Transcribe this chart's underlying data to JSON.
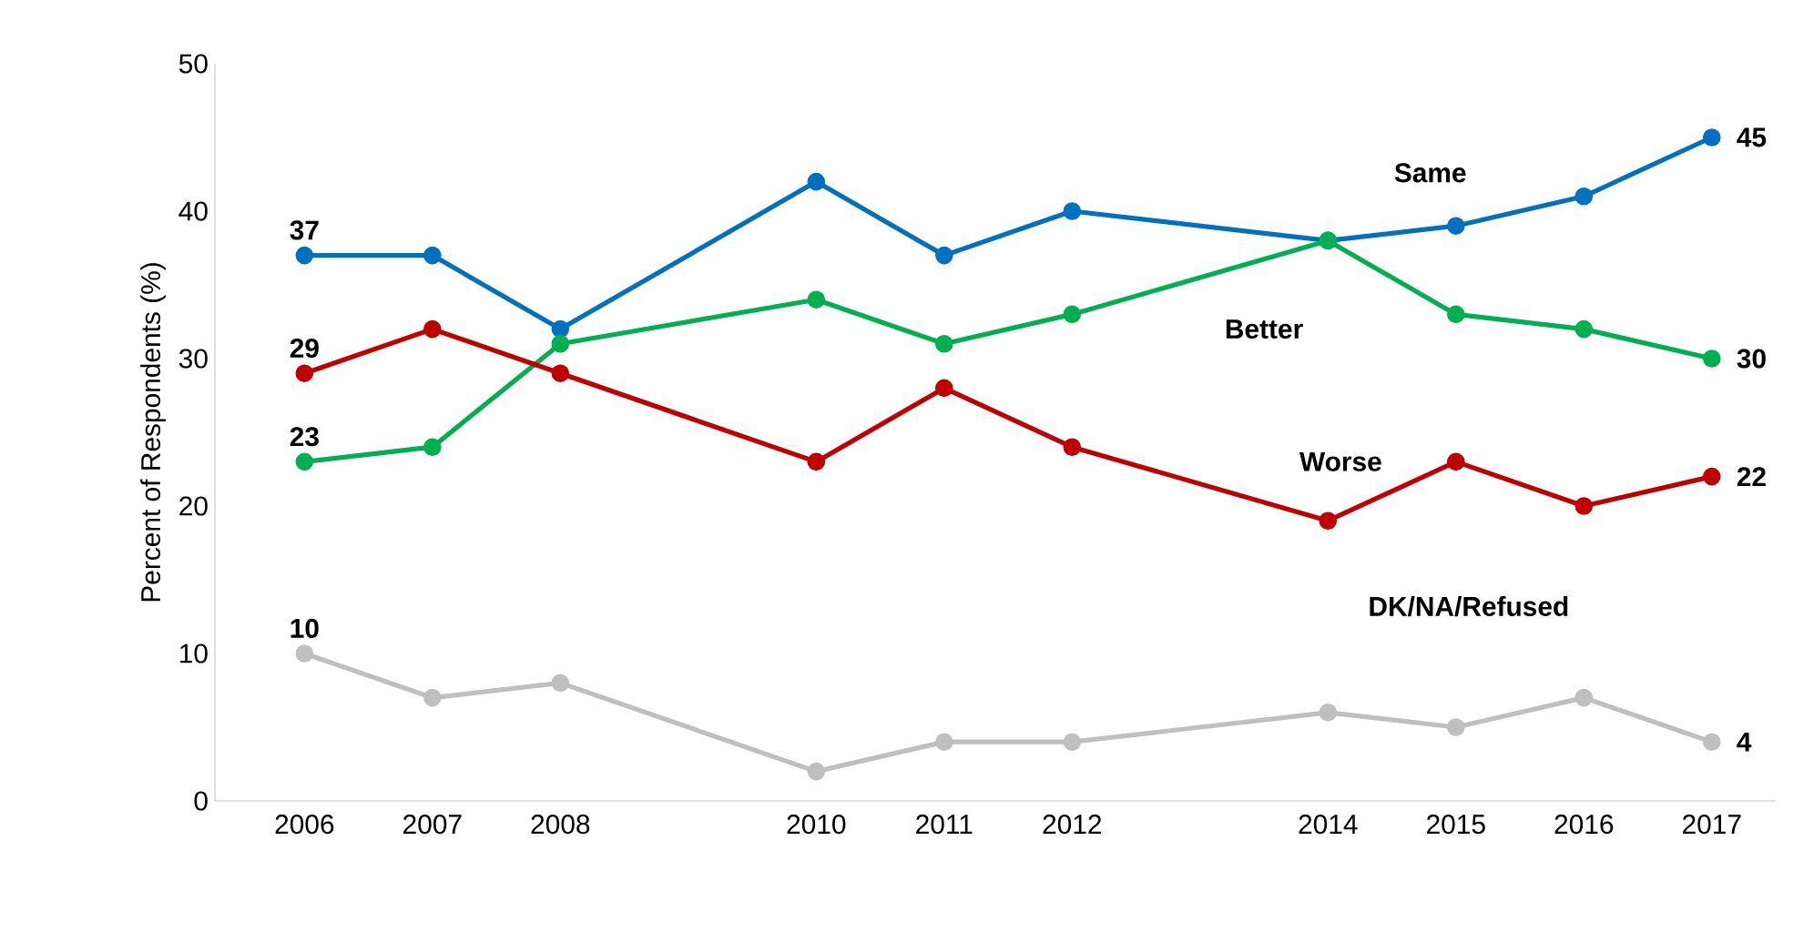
{
  "chart_data": {
    "type": "line",
    "ylabel": "Percent of Respondents (%)",
    "x": [
      2006,
      2007,
      2008,
      2010,
      2011,
      2012,
      2014,
      2015,
      2016,
      2017
    ],
    "xlim": [
      2005.3,
      2017.5
    ],
    "xticks": [
      2006,
      2007,
      2008,
      2010,
      2011,
      2012,
      2014,
      2015,
      2016,
      2017
    ],
    "ylim": [
      0,
      50
    ],
    "yticks": [
      0,
      10,
      20,
      30,
      40,
      50
    ],
    "grid": false,
    "legend": false,
    "marker": "circle",
    "line_style": "solid",
    "series": [
      {
        "name": "Same",
        "color": "#0070c0",
        "values": [
          37,
          37,
          32,
          42,
          37,
          40,
          38,
          39,
          41,
          45
        ],
        "value_labels": [
          "37",
          null,
          null,
          null,
          null,
          null,
          null,
          null,
          null,
          "45"
        ]
      },
      {
        "name": "Better",
        "color": "#00b050",
        "values": [
          23,
          24,
          31,
          34,
          31,
          33,
          38,
          33,
          32,
          30
        ],
        "value_labels": [
          "23",
          null,
          null,
          null,
          null,
          null,
          null,
          null,
          null,
          "30"
        ]
      },
      {
        "name": "Worse",
        "color": "#c00000",
        "values": [
          29,
          32,
          29,
          23,
          28,
          24,
          19,
          23,
          20,
          22
        ],
        "value_labels": [
          "29",
          null,
          null,
          null,
          null,
          null,
          null,
          null,
          null,
          "22"
        ]
      },
      {
        "name": "DK/NA/Refused",
        "color": "#bfbfbf",
        "values": [
          10,
          7,
          8,
          2,
          4,
          4,
          6,
          5,
          7,
          4
        ],
        "value_labels": [
          "10",
          null,
          null,
          null,
          null,
          null,
          null,
          null,
          null,
          "4"
        ]
      }
    ]
  }
}
